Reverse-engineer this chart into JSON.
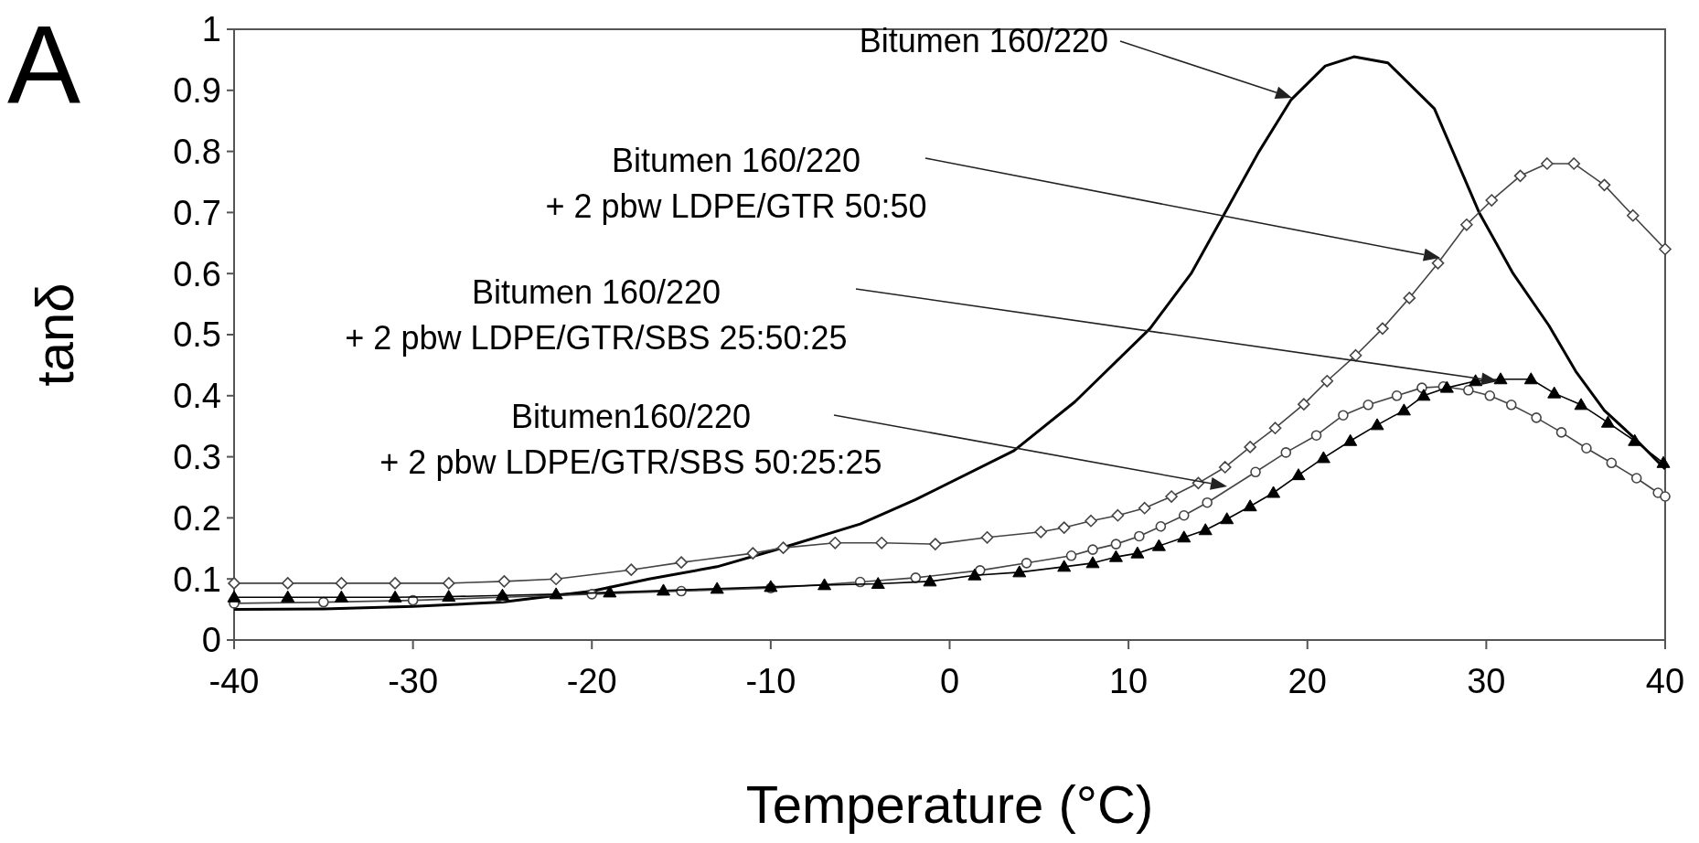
{
  "chart_data": {
    "type": "line",
    "xlabel": "Temperature (°C)",
    "ylabel": "tanδ",
    "xlim": [
      -40,
      40
    ],
    "xticks": [
      -40,
      -30,
      -20,
      -10,
      0,
      10,
      20,
      30,
      40
    ],
    "ylim": [
      0,
      1
    ],
    "yticks": [
      0,
      0.1,
      0.2,
      0.3,
      0.4,
      0.5,
      0.6,
      0.7,
      0.8,
      0.9,
      1
    ],
    "grid": false,
    "series": [
      {
        "color": "#000000",
        "marker": "none",
        "x": [
          -40,
          -35,
          -30,
          -25,
          -20,
          -16.8,
          -13,
          -9.8,
          -5,
          -1.9,
          3.6,
          7,
          11.2,
          13.5,
          15.4,
          17.3,
          19.1,
          21,
          22.6,
          24.5,
          27.1,
          29.6,
          31.5,
          33.5,
          35,
          36.6,
          38.3,
          40
        ],
        "values": [
          0.05,
          0.051,
          0.055,
          0.062,
          0.08,
          0.1,
          0.12,
          0.147,
          0.19,
          0.23,
          0.31,
          0.39,
          0.51,
          0.6,
          0.7,
          0.8,
          0.885,
          0.94,
          0.955,
          0.945,
          0.87,
          0.7,
          0.6,
          0.515,
          0.44,
          0.376,
          0.33,
          0.28
        ]
      },
      {
        "color": "#444444",
        "marker": "diamond",
        "x": [
          -40,
          -37,
          -34,
          -31,
          -28,
          -24.9,
          -22,
          -17.8,
          -15,
          -11,
          -9.3,
          -6.4,
          -3.8,
          -0.8,
          2.1,
          5.1,
          6.4,
          7.9,
          9.4,
          10.9,
          12.4,
          13.9,
          15.4,
          16.8,
          18.2,
          19.8,
          21.1,
          22.7,
          24.2,
          25.7,
          27.3,
          28.9,
          30.3,
          31.9,
          33.4,
          34.9,
          36.6,
          38.2,
          40
        ],
        "values": [
          0.093,
          0.093,
          0.093,
          0.093,
          0.093,
          0.096,
          0.1,
          0.115,
          0.127,
          0.142,
          0.151,
          0.159,
          0.159,
          0.157,
          0.168,
          0.177,
          0.184,
          0.195,
          0.204,
          0.216,
          0.235,
          0.257,
          0.283,
          0.316,
          0.347,
          0.386,
          0.424,
          0.466,
          0.51,
          0.56,
          0.617,
          0.68,
          0.72,
          0.76,
          0.78,
          0.78,
          0.745,
          0.695,
          0.64
        ]
      },
      {
        "color": "#444444",
        "marker": "circle",
        "x": [
          -40,
          -35,
          -30,
          -25,
          -20,
          -15,
          -10,
          -5,
          -1.9,
          1.7,
          4.3,
          6.8,
          8,
          9.3,
          10.6,
          11.8,
          13.1,
          14.4,
          17.1,
          18.8,
          20.5,
          22,
          23.4,
          25,
          26.4,
          27.6,
          29,
          30.2,
          31.4,
          32.8,
          34.2,
          35.6,
          37,
          38.4,
          39.6,
          40
        ],
        "values": [
          0.06,
          0.062,
          0.065,
          0.07,
          0.075,
          0.08,
          0.085,
          0.095,
          0.102,
          0.114,
          0.126,
          0.138,
          0.148,
          0.157,
          0.17,
          0.186,
          0.204,
          0.225,
          0.275,
          0.307,
          0.335,
          0.368,
          0.385,
          0.4,
          0.413,
          0.415,
          0.409,
          0.4,
          0.385,
          0.364,
          0.34,
          0.314,
          0.29,
          0.265,
          0.241,
          0.235
        ]
      },
      {
        "color": "#000000",
        "marker": "triangle",
        "x": [
          -40,
          -37,
          -34,
          -31,
          -28,
          -25,
          -22,
          -19,
          -16,
          -13,
          -10,
          -7,
          -4,
          -1.1,
          1.4,
          3.9,
          6.4,
          8,
          9.3,
          10.5,
          11.7,
          13.1,
          14.3,
          15.5,
          16.8,
          18.1,
          19.5,
          20.9,
          22.4,
          23.9,
          25.4,
          26.5,
          27.8,
          29.4,
          30.8,
          32.5,
          33.8,
          35.3,
          36.8,
          38.3,
          39.9
        ],
        "values": [
          0.07,
          0.07,
          0.07,
          0.07,
          0.071,
          0.073,
          0.075,
          0.078,
          0.081,
          0.084,
          0.087,
          0.09,
          0.092,
          0.096,
          0.106,
          0.111,
          0.12,
          0.126,
          0.136,
          0.142,
          0.154,
          0.168,
          0.18,
          0.198,
          0.219,
          0.241,
          0.27,
          0.298,
          0.326,
          0.352,
          0.376,
          0.4,
          0.413,
          0.424,
          0.427,
          0.427,
          0.404,
          0.385,
          0.356,
          0.326,
          0.29
        ]
      }
    ],
    "annotations": [
      "A",
      "Bitumen 160/220",
      "Bitumen 160/220\n+ 2 pbw LDPE/GTR 50:50",
      "Bitumen 160/220\n+ 2 pbw LDPE/GTR/SBS 25:50:25",
      "Bitumen160/220\n+ 2 pbw LDPE/GTR/SBS 50:25:25"
    ]
  }
}
